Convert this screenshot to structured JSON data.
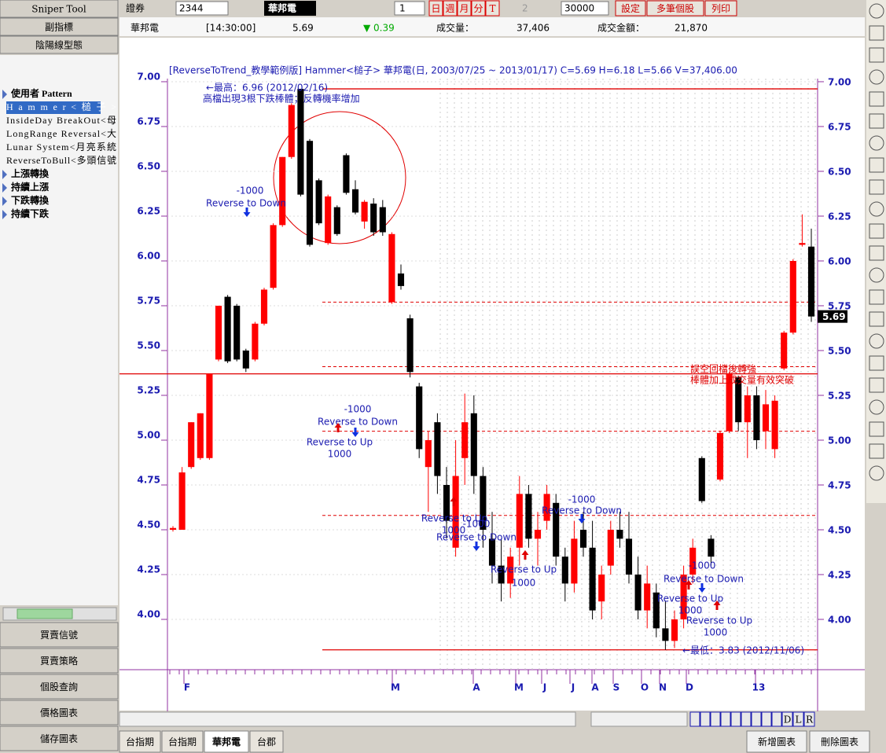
{
  "left_panel": {
    "top_buttons": [
      "Sniper Tool",
      "副指標",
      "陰陽線型態"
    ],
    "tree": [
      "使用者 Pattern",
      "Hammer<槌子>",
      "InsideDay BreakOut<母",
      "LongRange Reversal<大",
      "Lunar System<月亮系統",
      "ReverseToBull<多頭信號",
      "上漲轉換",
      "持續上漲",
      "下跌轉換",
      "持續下跌"
    ],
    "bottom_buttons": [
      "買賣信號",
      "買賣策略",
      "個股查詢",
      "價格圖表",
      "儲存圖表"
    ]
  },
  "toolbar": {
    "market": "證券",
    "code": "2344",
    "name": "華邦電",
    "period": "1",
    "intervals": [
      "日",
      "週",
      "月",
      "分",
      "T"
    ],
    "t_value": "2",
    "count": "30000",
    "buttons": [
      "設定",
      "多筆個股",
      "列印"
    ]
  },
  "quote": {
    "name": "華邦電",
    "time": "[14:30:00]",
    "price": "5.69",
    "change": "▼ 0.39",
    "volume_label": "成交量：",
    "volume": "37,406",
    "amount_label": "成交金額：",
    "amount": "21,870"
  },
  "chart": {
    "header": "[ReverseToTrend_教學範例版]  Hammer<槌子>    華邦電(日, 2003/07/25 ~ 2013/01/17)   C=5.69 H=6.18 L=5.66 V=37,406.00",
    "ylim": [
      3.75,
      7.07
    ],
    "yticks": [
      {
        "value": 7,
        "label": "7.00"
      },
      {
        "value": 6.75,
        "label": "6.75"
      },
      {
        "value": 6.5,
        "label": "6.50"
      },
      {
        "value": 6.25,
        "label": "6.25"
      },
      {
        "value": 6,
        "label": "6.00"
      },
      {
        "value": 5.75,
        "label": "5.75"
      },
      {
        "value": 5.5,
        "label": "5.50"
      },
      {
        "value": 5.25,
        "label": "5.25"
      },
      {
        "value": 5,
        "label": "5.00"
      },
      {
        "value": 4.75,
        "label": "4.75"
      },
      {
        "value": 4.5,
        "label": "4.50"
      },
      {
        "value": 4.25,
        "label": "4.25"
      },
      {
        "value": 4,
        "label": "4.00"
      }
    ],
    "months": [
      "F",
      "M",
      "A",
      "M",
      "J",
      "J",
      "A",
      "S",
      "O",
      "N",
      "D",
      "13"
    ],
    "candles": [
      [
        4.5,
        4.52,
        4.49,
        4.51
      ],
      [
        4.5,
        4.85,
        4.5,
        4.82
      ],
      [
        4.85,
        5.1,
        4.84,
        5.1
      ],
      [
        4.9,
        5.15,
        4.89,
        5.15
      ],
      [
        4.9,
        5.37,
        4.89,
        5.37
      ],
      [
        5.45,
        5.75,
        5.44,
        5.75
      ],
      [
        5.8,
        5.81,
        5.43,
        5.44
      ],
      [
        5.75,
        5.76,
        5.44,
        5.45
      ],
      [
        5.5,
        5.51,
        5.38,
        5.4
      ],
      [
        5.45,
        5.66,
        5.44,
        5.65
      ],
      [
        5.65,
        5.85,
        5.64,
        5.84
      ],
      [
        5.85,
        6.21,
        5.84,
        6.2
      ],
      [
        6.2,
        6.58,
        6.19,
        6.58
      ],
      [
        6.58,
        6.88,
        6.57,
        6.87
      ],
      [
        6.96,
        6.96,
        6.36,
        6.37
      ],
      [
        6.67,
        6.68,
        6.08,
        6.09
      ],
      [
        6.45,
        6.46,
        6.2,
        6.21
      ],
      [
        6.1,
        6.37,
        6.09,
        6.36
      ],
      [
        6.3,
        6.31,
        6.14,
        6.15
      ],
      [
        6.59,
        6.6,
        6.37,
        6.38
      ],
      [
        6.4,
        6.45,
        6.26,
        6.27
      ],
      [
        6.22,
        6.34,
        6.18,
        6.33
      ],
      [
        6.32,
        6.35,
        6.14,
        6.16
      ],
      [
        6.3,
        6.34,
        6.14,
        6.16
      ],
      [
        5.77,
        6.16,
        5.76,
        6.15
      ],
      [
        5.93,
        5.98,
        5.84,
        5.86
      ],
      [
        5.68,
        5.7,
        5.35,
        5.38
      ],
      [
        5.3,
        5.32,
        4.9,
        4.95
      ],
      [
        4.85,
        5.05,
        4.6,
        5.0
      ],
      [
        5.1,
        5.15,
        4.7,
        4.8
      ],
      [
        4.75,
        4.85,
        4.45,
        4.55
      ],
      [
        4.4,
        5.0,
        4.35,
        4.8
      ],
      [
        4.9,
        5.26,
        4.75,
        5.1
      ],
      [
        5.15,
        5.25,
        4.7,
        4.8
      ],
      [
        4.8,
        4.85,
        4.4,
        4.5
      ],
      [
        4.45,
        4.6,
        4.2,
        4.3
      ],
      [
        4.3,
        4.45,
        4.1,
        4.2
      ],
      [
        4.2,
        4.4,
        4.12,
        4.35
      ],
      [
        4.4,
        4.8,
        4.3,
        4.7
      ],
      [
        4.7,
        4.75,
        4.4,
        4.45
      ],
      [
        4.45,
        4.6,
        4.3,
        4.5
      ],
      [
        4.55,
        4.75,
        4.5,
        4.7
      ],
      [
        4.65,
        4.7,
        4.3,
        4.35
      ],
      [
        4.35,
        4.4,
        4.1,
        4.2
      ],
      [
        4.2,
        4.55,
        4.15,
        4.45
      ],
      [
        4.5,
        4.6,
        4.35,
        4.4
      ],
      [
        4.4,
        4.55,
        4.0,
        4.05
      ],
      [
        4.1,
        4.3,
        4.0,
        4.25
      ],
      [
        4.3,
        4.55,
        4.25,
        4.5
      ],
      [
        4.5,
        4.6,
        4.4,
        4.45
      ],
      [
        4.45,
        4.6,
        4.2,
        4.25
      ],
      [
        4.25,
        4.35,
        4.0,
        4.05
      ],
      [
        4.05,
        4.3,
        3.95,
        4.2
      ],
      [
        4.15,
        4.2,
        3.9,
        3.95
      ],
      [
        3.95,
        4.1,
        3.83,
        3.88
      ],
      [
        3.88,
        4.05,
        3.84,
        4.0
      ],
      [
        4.0,
        4.3,
        3.95,
        4.25
      ],
      [
        4.25,
        4.45,
        4.2,
        4.4
      ],
      [
        4.9,
        4.91,
        4.65,
        4.66
      ],
      [
        4.45,
        4.47,
        4.3,
        4.35
      ],
      [
        4.78,
        5.05,
        4.77,
        5.04
      ],
      [
        5.05,
        5.38,
        5.04,
        5.37
      ],
      [
        5.35,
        5.36,
        5.05,
        5.1
      ],
      [
        5.1,
        5.3,
        4.9,
        5.25
      ],
      [
        5.25,
        5.3,
        4.95,
        5.0
      ],
      [
        5.05,
        5.28,
        4.95,
        5.2
      ],
      [
        4.95,
        5.25,
        4.9,
        5.22
      ],
      [
        5.4,
        5.61,
        5.39,
        5.6
      ],
      [
        5.6,
        6.01,
        5.59,
        6.0
      ],
      [
        6.09,
        6.26,
        6.08,
        6.1
      ],
      [
        6.08,
        6.18,
        5.66,
        5.69
      ]
    ],
    "lines": [
      {
        "value": 6.96,
        "style": "solid"
      },
      {
        "value": 5.37,
        "style": "solid"
      },
      {
        "value": 3.83,
        "style": "solid"
      },
      {
        "value": 5.77,
        "style": "dashed"
      },
      {
        "value": 5.41,
        "style": "dashed"
      },
      {
        "value": 5.05,
        "style": "dashed"
      },
      {
        "value": 4.58,
        "style": "dashed"
      }
    ],
    "last_price": {
      "value": 5.69,
      "label": "5.69"
    },
    "annotations": [
      "←最高：6.96 (2012/02/16)",
      "高檔出現3根下跌棒體；反轉機率增加",
      "←最低：3.83 (2012/11/06)",
      "誤空回檔後轉強",
      "棒體加上成交量有效突破"
    ],
    "signals": [
      "-1000",
      "Reverse to Down",
      "-1000",
      "Reverse to Down",
      "Reverse to Up",
      "1000",
      "Reverse to Up",
      "1000",
      "-1000",
      "Reverse to Down",
      "Reverse to Up",
      "1000",
      "-1000",
      "Reverse to Down",
      "-1000",
      "Reverse to Down",
      "Reverse to Up",
      "1000",
      "Reverse to Up",
      "1000"
    ]
  },
  "nav_letters": [
    "D",
    "L",
    "R"
  ],
  "tabs": [
    "台指期",
    "台指期",
    "華邦電",
    "台郡"
  ],
  "chart_buttons": [
    "新增圖表",
    "刪除圖表"
  ]
}
